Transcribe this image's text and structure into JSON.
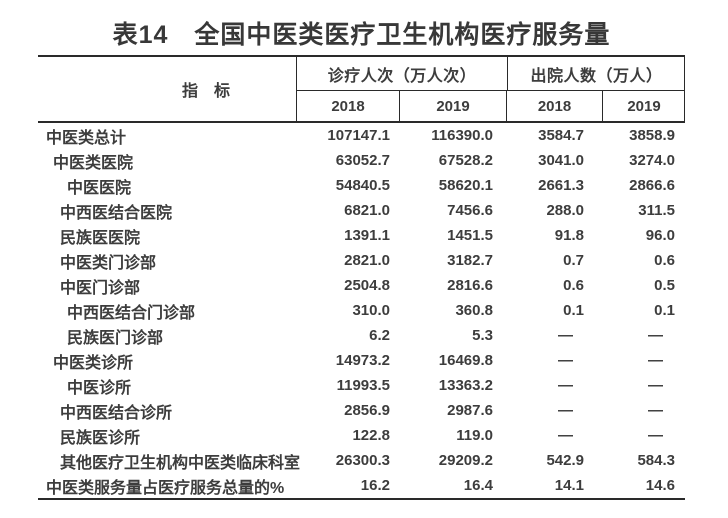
{
  "colors": {
    "text": "#3d3d3d",
    "border": "#2a2a2a",
    "background": "#ffffff"
  },
  "title": "表14　全国中医类医疗卫生机构医疗服务量",
  "table": {
    "indicator_header": "指　标",
    "col_groups": [
      {
        "label": "诊疗人次（万人次）",
        "years": [
          "2018",
          "2019"
        ]
      },
      {
        "label": "出院人数（万人）",
        "years": [
          "2018",
          "2019"
        ]
      }
    ],
    "rows": [
      {
        "label": "中医类总计",
        "v18": "107147.1",
        "v19": "116390.0",
        "d18": "3584.7",
        "d19": "3858.9"
      },
      {
        "label": "中医类医院",
        "v18": "63052.7",
        "v19": "67528.2",
        "d18": "3041.0",
        "d19": "3274.0"
      },
      {
        "label": "中医医院",
        "v18": "54840.5",
        "v19": "58620.1",
        "d18": "2661.3",
        "d19": "2866.6"
      },
      {
        "label": "中西医结合医院",
        "v18": "6821.0",
        "v19": "7456.6",
        "d18": "288.0",
        "d19": "311.5"
      },
      {
        "label": "民族医医院",
        "v18": "1391.1",
        "v19": "1451.5",
        "d18": "91.8",
        "d19": "96.0"
      },
      {
        "label": "中医类门诊部",
        "v18": "2821.0",
        "v19": "3182.7",
        "d18": "0.7",
        "d19": "0.6"
      },
      {
        "label": "中医门诊部",
        "v18": "2504.8",
        "v19": "2816.6",
        "d18": "0.6",
        "d19": "0.5"
      },
      {
        "label": "中西医结合门诊部",
        "v18": "310.0",
        "v19": "360.8",
        "d18": "0.1",
        "d19": "0.1"
      },
      {
        "label": "民族医门诊部",
        "v18": "6.2",
        "v19": "5.3",
        "d18": "—",
        "d19": "—"
      },
      {
        "label": "中医类诊所",
        "v18": "14973.2",
        "v19": "16469.8",
        "d18": "—",
        "d19": "—"
      },
      {
        "label": "中医诊所",
        "v18": "11993.5",
        "v19": "13363.2",
        "d18": "—",
        "d19": "—"
      },
      {
        "label": "中西医结合诊所",
        "v18": "2856.9",
        "v19": "2987.6",
        "d18": "—",
        "d19": "—"
      },
      {
        "label": "民族医诊所",
        "v18": "122.8",
        "v19": "119.0",
        "d18": "—",
        "d19": "—"
      },
      {
        "label": "其他医疗卫生机构中医类临床科室",
        "v18": "26300.3",
        "v19": "29209.2",
        "d18": "542.9",
        "d19": "584.3"
      },
      {
        "label": "中医类服务量占医疗服务总量的%",
        "v18": "16.2",
        "v19": "16.4",
        "d18": "14.1",
        "d19": "14.6"
      }
    ]
  }
}
